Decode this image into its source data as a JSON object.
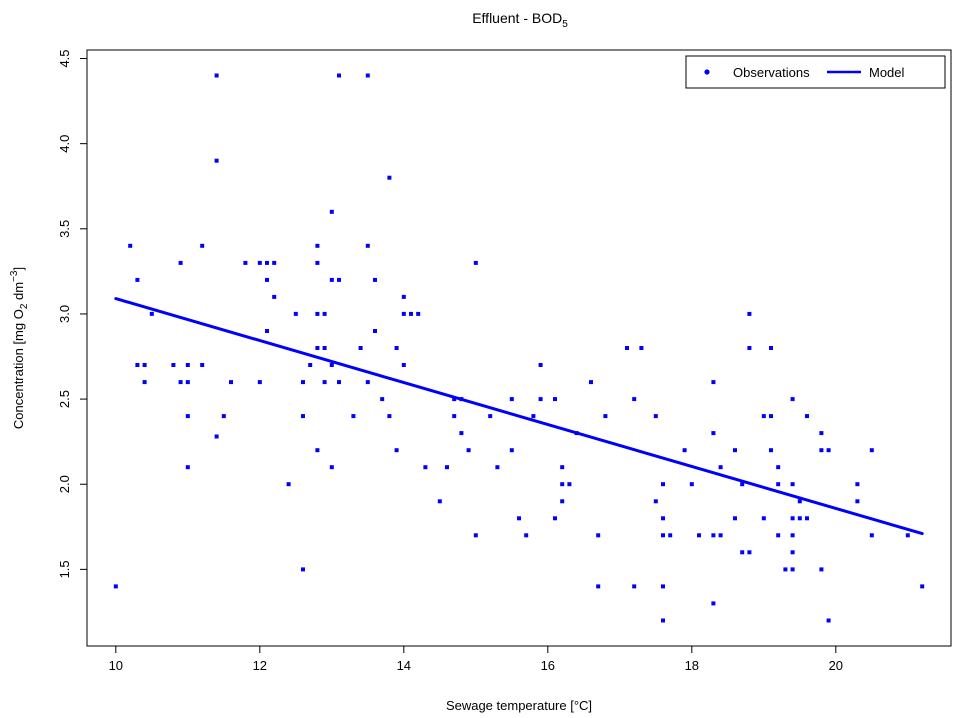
{
  "chart_data": {
    "type": "scatter",
    "title": "Effluent - BOD",
    "title_subscript": "5",
    "xlabel": "Sewage temperature [°C]",
    "ylabel": {
      "prefix": "Concentration [mg O",
      "sub": "2",
      "middle": " dm",
      "sup": "−3",
      "suffix": "]"
    },
    "xlim": [
      9.6,
      21.6
    ],
    "ylim": [
      1.05,
      4.55
    ],
    "xticks": [
      10,
      12,
      14,
      16,
      18,
      20
    ],
    "xtick_labels": [
      "10",
      "12",
      "14",
      "16",
      "18",
      "20"
    ],
    "yticks": [
      1.5,
      2.0,
      2.5,
      3.0,
      3.5,
      4.0,
      4.5
    ],
    "ytick_labels": [
      "1.5",
      "2.0",
      "2.5",
      "3.0",
      "3.5",
      "4.0",
      "4.5"
    ],
    "grid": false,
    "legend_position": "top-right",
    "colors": {
      "observations": "#0000ff",
      "model": "#0000ff"
    },
    "series": [
      {
        "name": "Observations",
        "kind": "points",
        "points": [
          [
            10.0,
            1.4
          ],
          [
            10.2,
            3.4
          ],
          [
            10.3,
            3.2
          ],
          [
            10.3,
            2.7
          ],
          [
            10.4,
            2.7
          ],
          [
            10.4,
            2.6
          ],
          [
            10.5,
            3.0
          ],
          [
            10.8,
            2.7
          ],
          [
            10.9,
            3.3
          ],
          [
            10.9,
            2.6
          ],
          [
            11.0,
            2.7
          ],
          [
            11.0,
            2.6
          ],
          [
            11.0,
            2.4
          ],
          [
            11.0,
            2.1
          ],
          [
            11.2,
            3.4
          ],
          [
            11.2,
            2.7
          ],
          [
            11.4,
            4.4
          ],
          [
            11.4,
            3.9
          ],
          [
            11.4,
            2.28
          ],
          [
            11.5,
            2.4
          ],
          [
            11.6,
            2.6
          ],
          [
            11.8,
            3.3
          ],
          [
            12.0,
            3.3
          ],
          [
            12.0,
            2.6
          ],
          [
            12.1,
            3.3
          ],
          [
            12.1,
            3.2
          ],
          [
            12.1,
            2.9
          ],
          [
            12.2,
            3.3
          ],
          [
            12.2,
            3.1
          ],
          [
            12.4,
            2.0
          ],
          [
            12.5,
            3.0
          ],
          [
            12.6,
            2.6
          ],
          [
            12.6,
            2.4
          ],
          [
            12.6,
            1.5
          ],
          [
            12.7,
            2.7
          ],
          [
            12.8,
            3.4
          ],
          [
            12.8,
            3.3
          ],
          [
            12.8,
            3.0
          ],
          [
            12.8,
            2.8
          ],
          [
            12.8,
            2.2
          ],
          [
            12.9,
            3.0
          ],
          [
            12.9,
            2.8
          ],
          [
            12.9,
            2.6
          ],
          [
            13.0,
            3.6
          ],
          [
            13.0,
            3.2
          ],
          [
            13.0,
            2.7
          ],
          [
            13.0,
            2.1
          ],
          [
            13.1,
            4.4
          ],
          [
            13.1,
            3.2
          ],
          [
            13.1,
            2.6
          ],
          [
            13.3,
            2.4
          ],
          [
            13.4,
            2.8
          ],
          [
            13.5,
            4.4
          ],
          [
            13.5,
            3.4
          ],
          [
            13.5,
            2.6
          ],
          [
            13.6,
            3.2
          ],
          [
            13.6,
            2.9
          ],
          [
            13.7,
            2.5
          ],
          [
            13.8,
            3.8
          ],
          [
            13.8,
            2.4
          ],
          [
            13.9,
            2.8
          ],
          [
            13.9,
            2.2
          ],
          [
            14.0,
            3.1
          ],
          [
            14.0,
            3.0
          ],
          [
            14.0,
            2.7
          ],
          [
            14.1,
            3.0
          ],
          [
            14.2,
            3.0
          ],
          [
            14.3,
            2.1
          ],
          [
            14.5,
            1.9
          ],
          [
            14.6,
            2.1
          ],
          [
            14.7,
            2.5
          ],
          [
            14.7,
            2.4
          ],
          [
            14.8,
            2.5
          ],
          [
            14.8,
            2.3
          ],
          [
            14.9,
            2.2
          ],
          [
            15.0,
            3.3
          ],
          [
            15.0,
            1.7
          ],
          [
            15.2,
            2.4
          ],
          [
            15.3,
            2.1
          ],
          [
            15.5,
            2.5
          ],
          [
            15.5,
            2.2
          ],
          [
            15.6,
            1.8
          ],
          [
            15.7,
            1.7
          ],
          [
            15.8,
            2.4
          ],
          [
            15.9,
            2.7
          ],
          [
            15.9,
            2.5
          ],
          [
            16.1,
            2.5
          ],
          [
            16.1,
            1.8
          ],
          [
            16.2,
            2.1
          ],
          [
            16.2,
            2.0
          ],
          [
            16.2,
            1.9
          ],
          [
            16.3,
            2.0
          ],
          [
            16.4,
            2.3
          ],
          [
            16.6,
            2.6
          ],
          [
            16.7,
            1.7
          ],
          [
            16.7,
            1.4
          ],
          [
            16.8,
            2.4
          ],
          [
            17.1,
            2.8
          ],
          [
            17.2,
            2.5
          ],
          [
            17.2,
            1.4
          ],
          [
            17.3,
            2.8
          ],
          [
            17.5,
            2.4
          ],
          [
            17.5,
            1.9
          ],
          [
            17.6,
            2.0
          ],
          [
            17.6,
            1.8
          ],
          [
            17.6,
            1.7
          ],
          [
            17.6,
            1.4
          ],
          [
            17.6,
            1.2
          ],
          [
            17.7,
            1.7
          ],
          [
            17.9,
            2.2
          ],
          [
            18.0,
            2.0
          ],
          [
            18.1,
            1.7
          ],
          [
            18.3,
            2.6
          ],
          [
            18.3,
            2.3
          ],
          [
            18.3,
            1.7
          ],
          [
            18.3,
            1.3
          ],
          [
            18.4,
            2.1
          ],
          [
            18.4,
            1.7
          ],
          [
            18.6,
            2.2
          ],
          [
            18.6,
            1.8
          ],
          [
            18.7,
            2.0
          ],
          [
            18.7,
            1.6
          ],
          [
            18.8,
            3.0
          ],
          [
            18.8,
            2.8
          ],
          [
            18.8,
            1.6
          ],
          [
            19.0,
            2.4
          ],
          [
            19.0,
            1.8
          ],
          [
            19.1,
            2.8
          ],
          [
            19.1,
            2.4
          ],
          [
            19.1,
            2.2
          ],
          [
            19.2,
            2.1
          ],
          [
            19.2,
            2.0
          ],
          [
            19.2,
            1.7
          ],
          [
            19.3,
            1.5
          ],
          [
            19.4,
            2.5
          ],
          [
            19.4,
            2.0
          ],
          [
            19.4,
            1.8
          ],
          [
            19.4,
            1.7
          ],
          [
            19.4,
            1.6
          ],
          [
            19.4,
            1.5
          ],
          [
            19.5,
            1.9
          ],
          [
            19.5,
            1.8
          ],
          [
            19.6,
            2.4
          ],
          [
            19.6,
            1.8
          ],
          [
            19.8,
            2.3
          ],
          [
            19.8,
            2.2
          ],
          [
            19.8,
            1.5
          ],
          [
            19.9,
            2.2
          ],
          [
            19.9,
            1.2
          ],
          [
            20.3,
            2.0
          ],
          [
            20.3,
            1.9
          ],
          [
            20.5,
            2.2
          ],
          [
            20.5,
            1.7
          ],
          [
            21.0,
            1.7
          ],
          [
            21.2,
            1.4
          ]
        ]
      },
      {
        "name": "Model",
        "kind": "line",
        "points": [
          [
            10.0,
            3.09
          ],
          [
            21.2,
            1.71
          ]
        ]
      }
    ]
  }
}
